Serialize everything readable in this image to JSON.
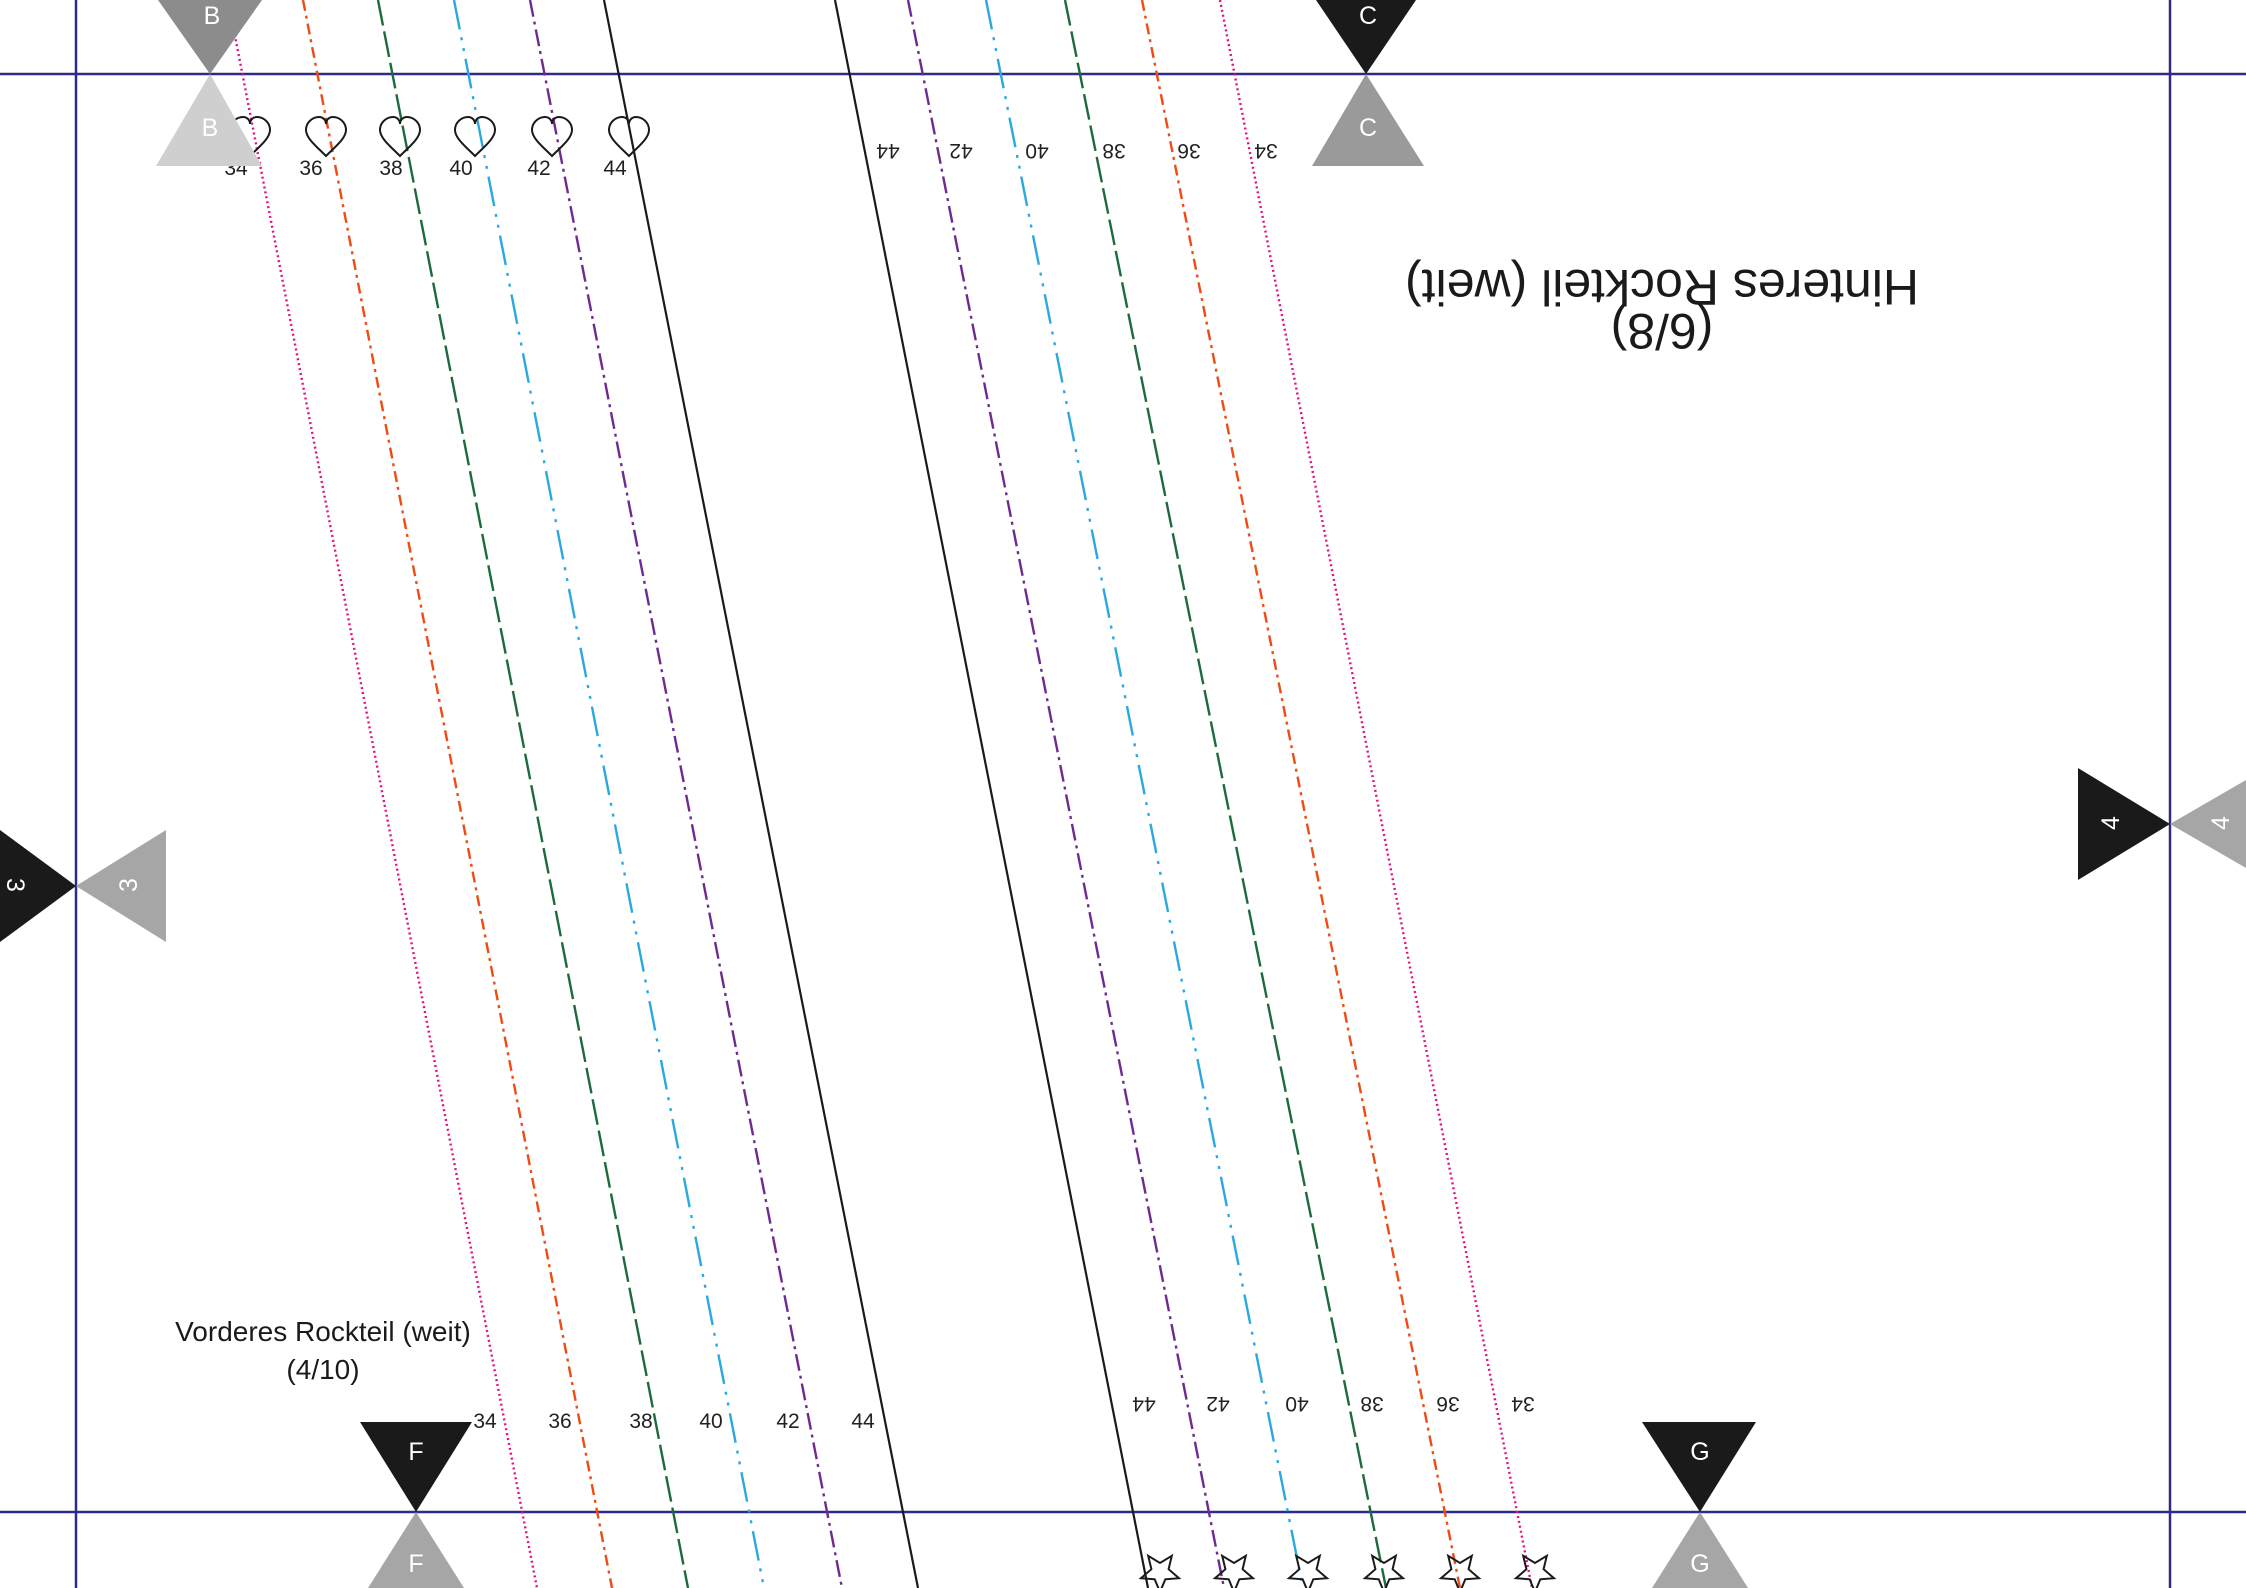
{
  "sheet": {
    "title_upside_down": "Hinteres Rockteil (weit)",
    "subtitle_upside_down": "(6/8)",
    "label_lower_left": "Vorderes Rockteil (weit)",
    "sublabel_lower_left": "(4/10)"
  },
  "sizes": [
    {
      "size": "34",
      "color": "#e0127f",
      "dash": "2 3"
    },
    {
      "size": "36",
      "color": "#ee4c14",
      "dash": "11 5 3 5"
    },
    {
      "size": "38",
      "color": "#1c6b3a",
      "dash": "26 6"
    },
    {
      "size": "40",
      "color": "#2ba8e0",
      "dash": "30 8 3 8 3 8"
    },
    {
      "size": "42",
      "color": "#6f2a91",
      "dash": "17 5 3 5"
    },
    {
      "size": "44",
      "color": "#1a1a1a",
      "dash": ""
    }
  ],
  "markers": [
    {
      "id": "B",
      "label": "B",
      "color": "#8c8c8c"
    },
    {
      "id": "B2",
      "label": "B",
      "color": "#cfcfcf"
    },
    {
      "id": "C",
      "label": "C",
      "color": "#1a1a1a"
    },
    {
      "id": "C2",
      "label": "C",
      "color": "#9a9a9a"
    },
    {
      "id": "3",
      "label": "3",
      "color": "#1a1a1a"
    },
    {
      "id": "3b",
      "label": "3",
      "color": "#a6a6a6"
    },
    {
      "id": "4",
      "label": "4",
      "color": "#1a1a1a"
    },
    {
      "id": "4b",
      "label": "4",
      "color": "#a6a6a6"
    },
    {
      "id": "F",
      "label": "F",
      "color": "#1a1a1a"
    },
    {
      "id": "F2",
      "label": "F",
      "color": "#a6a6a6"
    },
    {
      "id": "G",
      "label": "G",
      "color": "#1a1a1a"
    },
    {
      "id": "G2",
      "label": "G",
      "color": "#a6a6a6"
    }
  ],
  "colors": {
    "page_border": "#2e2a8c",
    "background": "#ffffff"
  },
  "icons": {
    "top_notch": "heart-icon",
    "bottom_notch": "star-icon"
  }
}
